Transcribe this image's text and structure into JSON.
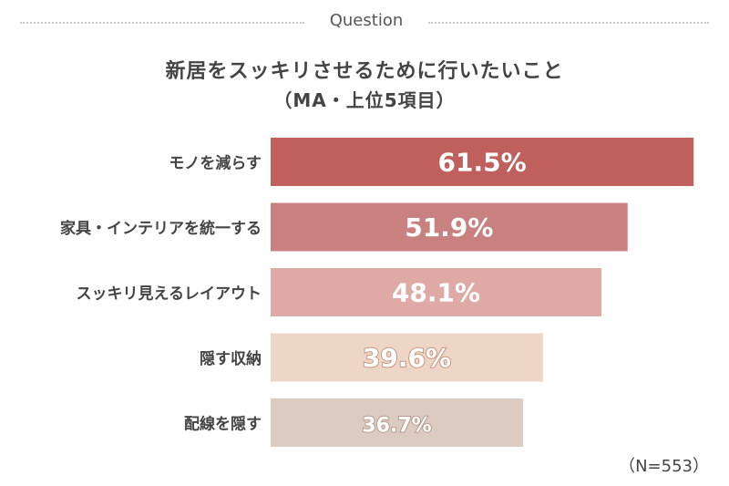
{
  "header": {
    "label": "Question"
  },
  "title": "新居をスッキリさせるために行いたいこと",
  "subtitle": "（MA・上位5項目）",
  "note": "（N=553）",
  "chart_data": {
    "type": "bar",
    "orientation": "horizontal",
    "categories": [
      "モノを減らす",
      "家具・インテリアを統一する",
      "スッキリ見えるレイアウト",
      "隠す収納",
      "配線を隠す"
    ],
    "values": [
      61.5,
      51.9,
      48.1,
      39.6,
      36.7
    ],
    "value_labels": [
      "61.5%",
      "51.9%",
      "48.1%",
      "39.6%",
      "36.7%"
    ],
    "unit": "%",
    "xlim": [
      0,
      62
    ],
    "grid": false,
    "colors": [
      "#c0605c",
      "#c98180",
      "#dfaaa5",
      "#eed6c6",
      "#dccbc0"
    ],
    "label_colors": [
      "#c0605c",
      "#c98180",
      "#dfaaa5",
      "#c8957e",
      "#b99a8c"
    ]
  }
}
